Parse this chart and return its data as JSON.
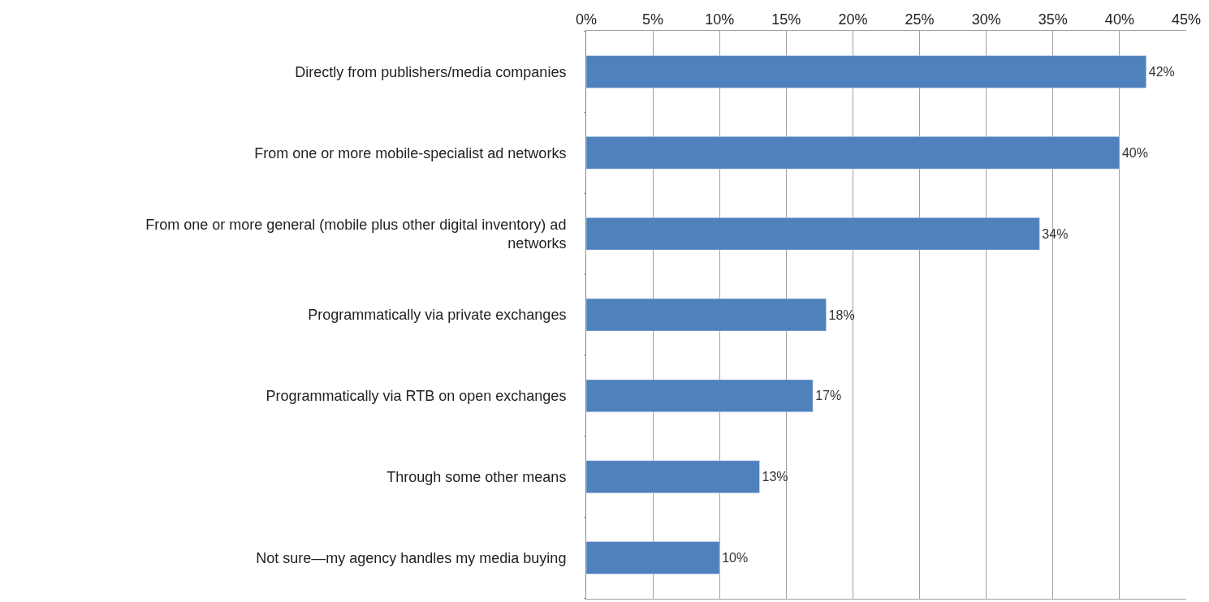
{
  "chart_data": {
    "type": "bar",
    "orientation": "horizontal",
    "categories": [
      "Directly from publishers/media companies",
      "From one or more mobile-specialist ad networks",
      "From one or more general (mobile plus other digital inventory) ad networks",
      "Programmatically via private exchanges",
      "Programmatically via RTB on open exchanges",
      "Through some other means",
      "Not sure—my agency handles my media buying"
    ],
    "values": [
      42,
      40,
      34,
      18,
      17,
      13,
      10
    ],
    "value_labels": [
      "42%",
      "40%",
      "34%",
      "18%",
      "17%",
      "13%",
      "10%"
    ],
    "color": "#4f81bd",
    "xlim": [
      0,
      45
    ],
    "xticks": [
      {
        "value": 0,
        "label": "0%"
      },
      {
        "value": 5,
        "label": "5%"
      },
      {
        "value": 10,
        "label": "10%"
      },
      {
        "value": 15,
        "label": "15%"
      },
      {
        "value": 20,
        "label": "20%"
      },
      {
        "value": 25,
        "label": "25%"
      },
      {
        "value": 30,
        "label": "30%"
      },
      {
        "value": 35,
        "label": "35%"
      },
      {
        "value": 40,
        "label": "40%"
      },
      {
        "value": 45,
        "label": "45%"
      }
    ],
    "grid": "x",
    "legend": false
  }
}
